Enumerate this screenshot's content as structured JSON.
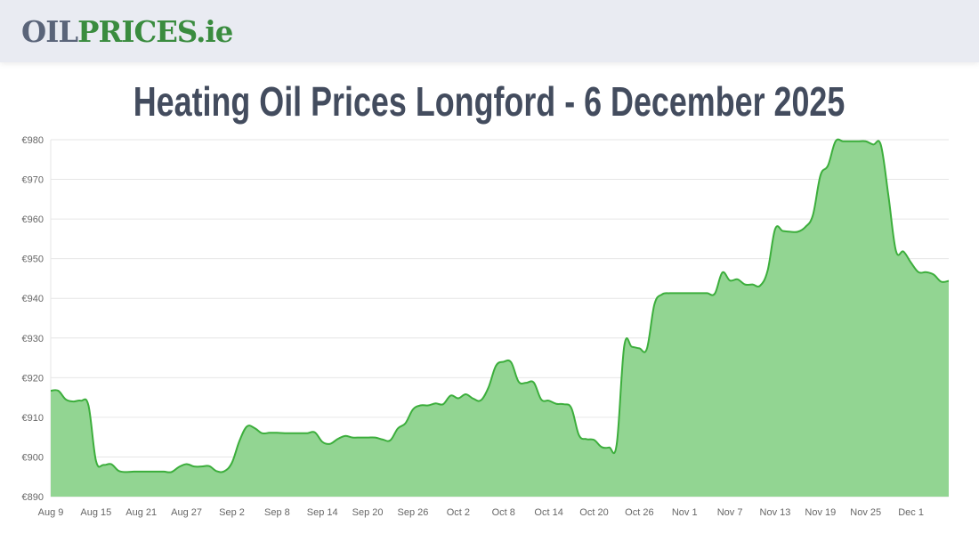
{
  "header": {
    "logo_part1": "OIL",
    "logo_part2": "PRICES",
    "logo_part3": ".ie"
  },
  "page_title": "Heating Oil Prices Longford - 6 December 2025",
  "colors": {
    "fill": "#92d592",
    "line": "#3cae3c",
    "logo_gray": "#5a6479",
    "logo_green": "#3a8c3f",
    "title": "#434c5e"
  },
  "chart_data": {
    "type": "area",
    "title": "",
    "xlabel": "",
    "ylabel": "",
    "ylim": [
      890,
      980
    ],
    "y_ticks": [
      "€890",
      "€900",
      "€910",
      "€920",
      "€930",
      "€940",
      "€950",
      "€960",
      "€970",
      "€980"
    ],
    "x_tick_labels": [
      "Aug 9",
      "Aug 15",
      "Aug 21",
      "Aug 27",
      "Sep 2",
      "Sep 8",
      "Sep 14",
      "Sep 20",
      "Sep 26",
      "Oct 2",
      "Oct 8",
      "Oct 14",
      "Oct 20",
      "Oct 26",
      "Nov 1",
      "Nov 7",
      "Nov 13",
      "Nov 19",
      "Nov 25",
      "Dec 1"
    ],
    "grid": true,
    "legend": "none",
    "x": [
      "Aug 9",
      "Aug 10",
      "Aug 11",
      "Aug 12",
      "Aug 13",
      "Aug 14",
      "Aug 15",
      "Aug 16",
      "Aug 17",
      "Aug 18",
      "Aug 19",
      "Aug 20",
      "Aug 21",
      "Aug 22",
      "Aug 23",
      "Aug 24",
      "Aug 25",
      "Aug 26",
      "Aug 27",
      "Aug 28",
      "Aug 29",
      "Aug 30",
      "Aug 31",
      "Sep 1",
      "Sep 2",
      "Sep 3",
      "Sep 4",
      "Sep 5",
      "Sep 6",
      "Sep 7",
      "Sep 8",
      "Sep 9",
      "Sep 10",
      "Sep 11",
      "Sep 12",
      "Sep 13",
      "Sep 14",
      "Sep 15",
      "Sep 16",
      "Sep 17",
      "Sep 18",
      "Sep 19",
      "Sep 20",
      "Sep 21",
      "Sep 22",
      "Sep 23",
      "Sep 24",
      "Sep 25",
      "Sep 26",
      "Sep 27",
      "Sep 28",
      "Sep 29",
      "Sep 30",
      "Oct 1",
      "Oct 2",
      "Oct 3",
      "Oct 4",
      "Oct 5",
      "Oct 6",
      "Oct 7",
      "Oct 8",
      "Oct 9",
      "Oct 10",
      "Oct 11",
      "Oct 12",
      "Oct 13",
      "Oct 14",
      "Oct 15",
      "Oct 16",
      "Oct 17",
      "Oct 18",
      "Oct 19",
      "Oct 20",
      "Oct 21",
      "Oct 22",
      "Oct 23",
      "Oct 24",
      "Oct 25",
      "Oct 26",
      "Oct 27",
      "Oct 28",
      "Oct 29",
      "Oct 30",
      "Oct 31",
      "Nov 1",
      "Nov 2",
      "Nov 3",
      "Nov 4",
      "Nov 5",
      "Nov 6",
      "Nov 7",
      "Nov 8",
      "Nov 9",
      "Nov 10",
      "Nov 11",
      "Nov 12",
      "Nov 13",
      "Nov 14",
      "Nov 15",
      "Nov 16",
      "Nov 17",
      "Nov 18",
      "Nov 19",
      "Nov 20",
      "Nov 21",
      "Nov 22",
      "Nov 23",
      "Nov 24",
      "Nov 25",
      "Nov 26",
      "Nov 27",
      "Nov 28",
      "Nov 29",
      "Nov 30",
      "Dec 1",
      "Dec 2",
      "Dec 3",
      "Dec 4",
      "Dec 5",
      "Dec 6"
    ],
    "values": [
      916.7,
      916.7,
      914.5,
      914,
      914.2,
      913,
      899,
      898,
      898.2,
      896.5,
      896.2,
      896.3,
      896.3,
      896.3,
      896.3,
      896.3,
      896.2,
      897.5,
      898.2,
      897.6,
      897.6,
      897.7,
      896.4,
      896.4,
      898.5,
      904,
      907.7,
      907.3,
      906,
      906.1,
      906.1,
      906,
      906,
      906,
      906,
      906.2,
      903.8,
      903.3,
      904.5,
      905.3,
      904.9,
      904.9,
      904.9,
      904.9,
      904.4,
      904.2,
      907.2,
      908.5,
      912,
      913,
      913,
      913.5,
      913.3,
      915.5,
      914.8,
      915.8,
      914.7,
      914.3,
      917.5,
      923,
      924,
      923.9,
      919,
      918.7,
      918.8,
      914.5,
      914.2,
      913.4,
      913.3,
      912.3,
      905.5,
      904.5,
      904.3,
      902.5,
      902.4,
      903.2,
      928,
      927.8,
      927.4,
      927.3,
      938.5,
      941,
      941.3,
      941.3,
      941.3,
      941.3,
      941.3,
      941.3,
      941.2,
      946.5,
      944.5,
      944.8,
      943.5,
      943.5,
      943.2,
      947,
      957.5,
      957,
      956.8,
      956.8,
      958,
      961,
      971,
      973.5,
      979.6,
      979.6,
      979.6,
      979.6,
      979.6,
      978.8,
      978.7,
      966,
      952,
      951.8,
      949,
      946.6,
      946.6,
      946,
      944.2,
      944.4
    ]
  }
}
